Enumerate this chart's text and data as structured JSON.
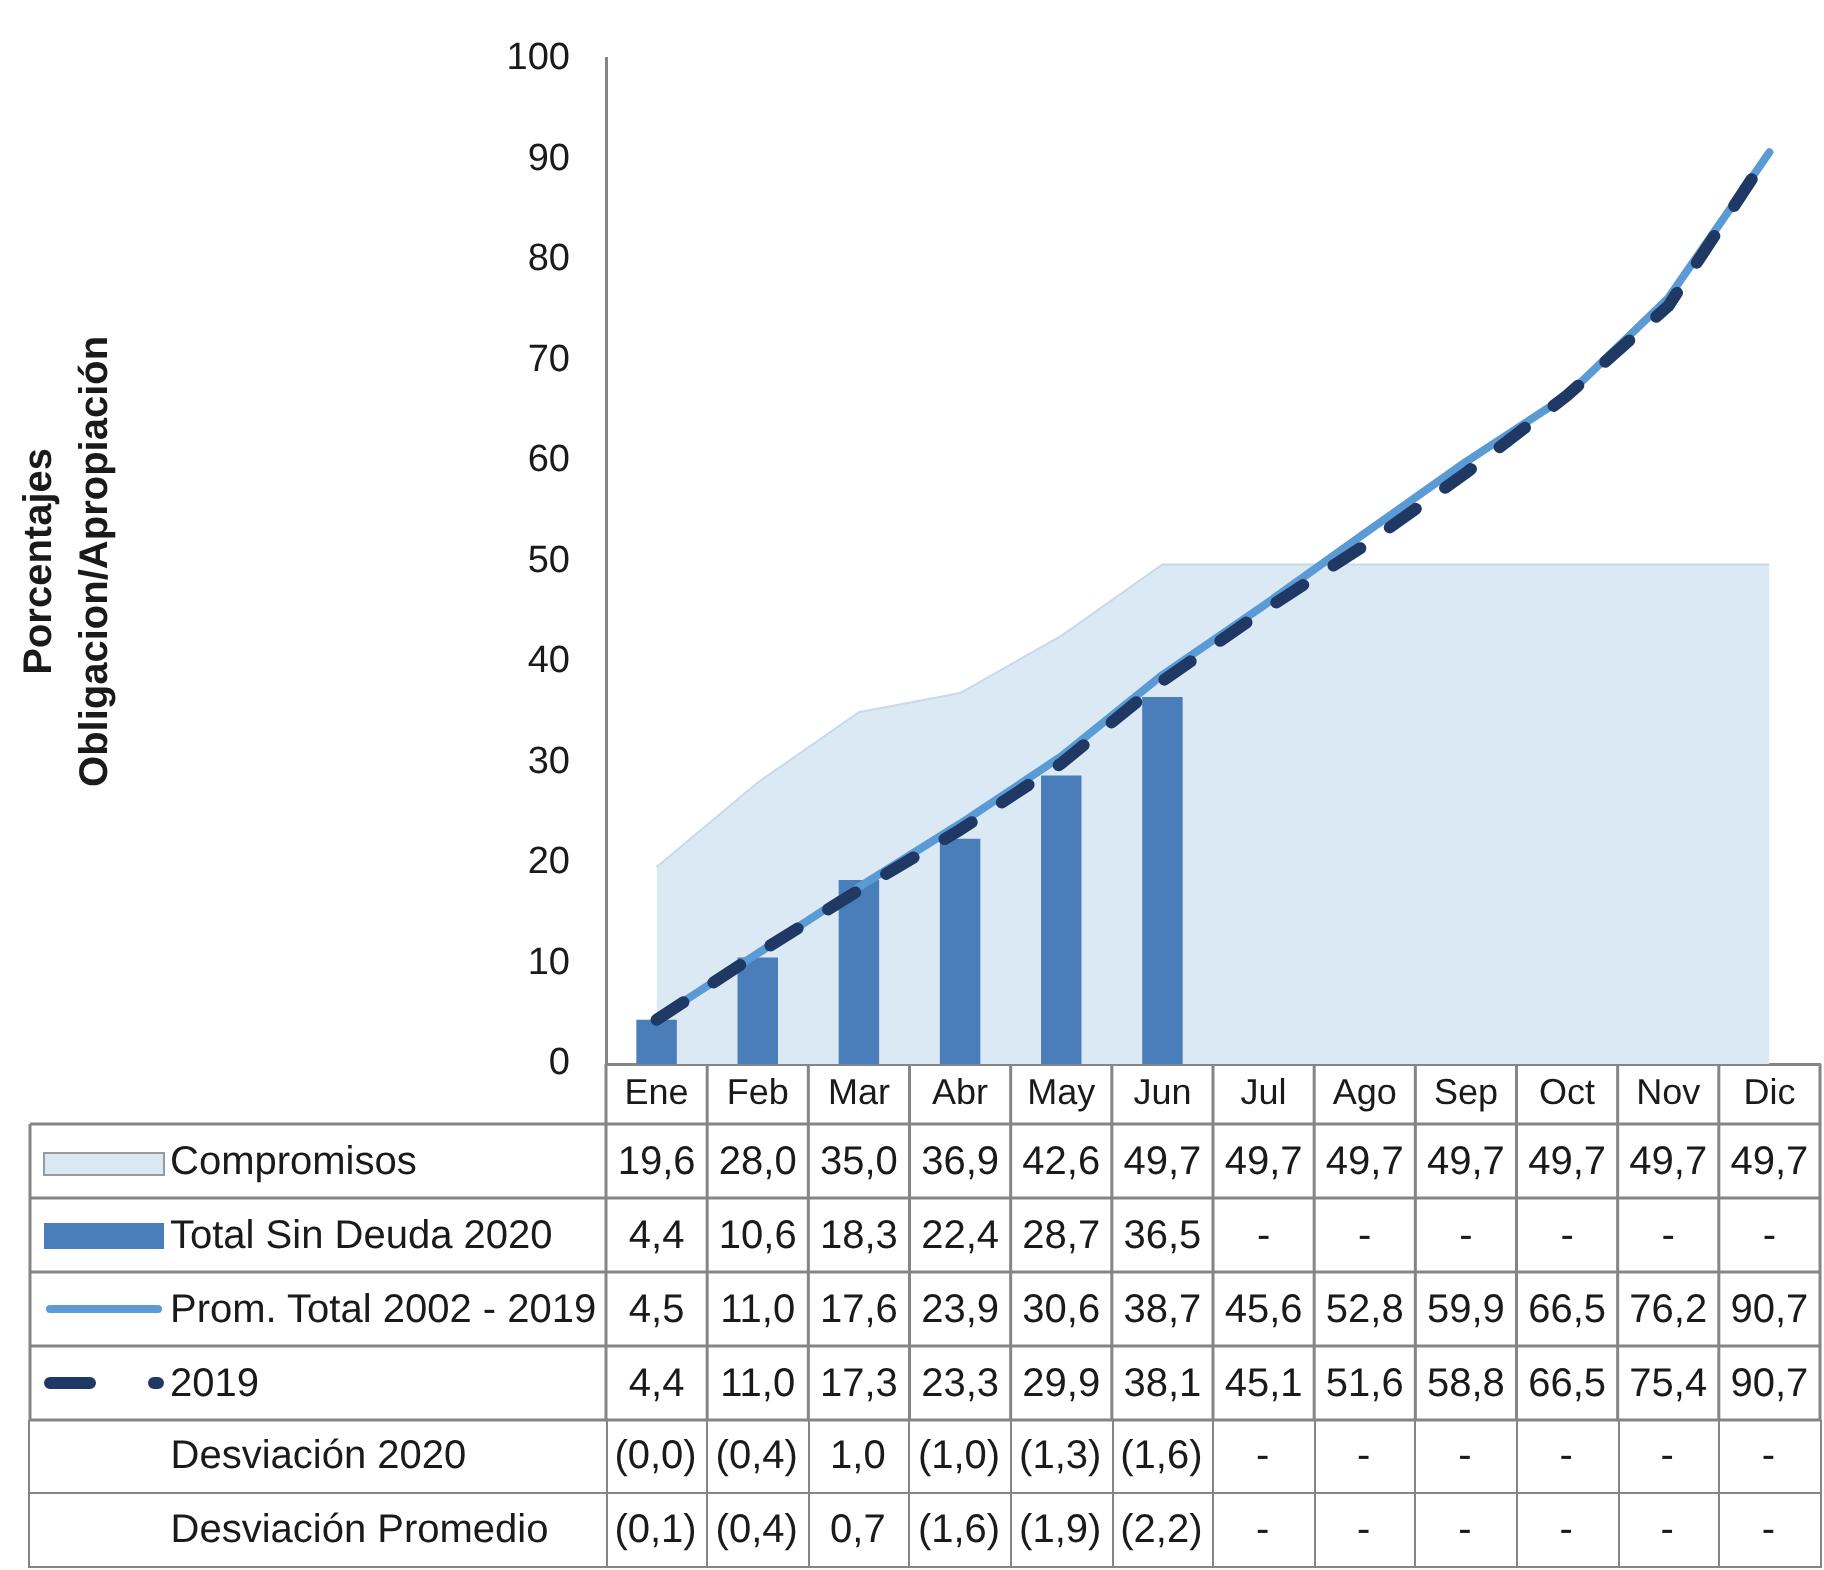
{
  "chart_data": [
    {
      "type": "bar",
      "ylabel": "Porcentajes\nObligacion/Apropiación",
      "categories": [
        "Ene",
        "Feb",
        "Mar",
        "Abr",
        "May",
        "Jun",
        "Jul",
        "Ago",
        "Sep",
        "Oct",
        "Nov",
        "Dic"
      ],
      "series": [
        {
          "name": "Compromisos",
          "type": "area",
          "color": "#dbe9f5",
          "values": [
            19.6,
            28.0,
            35.0,
            36.9,
            42.6,
            49.7,
            49.7,
            49.7,
            49.7,
            49.7,
            49.7,
            49.7
          ],
          "value_labels": [
            "19,6",
            "28,0",
            "35,0",
            "36,9",
            "42,6",
            "49,7",
            "49,7",
            "49,7",
            "49,7",
            "49,7",
            "49,7",
            "49,7"
          ]
        },
        {
          "name": "Total Sin Deuda 2020",
          "type": "bar",
          "color": "#4a7ebb",
          "values": [
            4.4,
            10.6,
            18.3,
            22.4,
            28.7,
            36.5,
            null,
            null,
            null,
            null,
            null,
            null
          ],
          "value_labels": [
            "4,4",
            "10,6",
            "18,3",
            "22,4",
            "28,7",
            "36,5",
            "-",
            "-",
            "-",
            "-",
            "-",
            "-"
          ]
        },
        {
          "name": "Prom. Total 2002 - 2019",
          "type": "line",
          "color": "#5b9bd5",
          "values": [
            4.5,
            11.0,
            17.6,
            23.9,
            30.6,
            38.7,
            45.6,
            52.8,
            59.9,
            66.5,
            76.2,
            90.7
          ],
          "value_labels": [
            "4,5",
            "11,0",
            "17,6",
            "23,9",
            "30,6",
            "38,7",
            "45,6",
            "52,8",
            "59,9",
            "66,5",
            "76,2",
            "90,7"
          ]
        },
        {
          "name": "2019",
          "type": "line",
          "line_style": "dashed",
          "color": "#1f3864",
          "values": [
            4.4,
            11.0,
            17.3,
            23.3,
            29.9,
            38.1,
            45.1,
            51.6,
            58.8,
            66.5,
            75.4,
            90.7
          ],
          "value_labels": [
            "4,4",
            "11,0",
            "17,3",
            "23,3",
            "29,9",
            "38,1",
            "45,1",
            "51,6",
            "58,8",
            "66,5",
            "75,4",
            "90,7"
          ]
        }
      ],
      "ylim": [
        0,
        100
      ],
      "yticks": [
        0,
        10,
        20,
        30,
        40,
        50,
        60,
        70,
        80,
        90,
        100
      ],
      "legend": "bottom"
    },
    {
      "type": "other",
      "annotations": [
        "Desviación 2020",
        "(0,0)",
        "(0,4)",
        "1,0",
        "(1,0)",
        "(1,3)",
        "(1,6)",
        "-",
        "-",
        "-",
        "-",
        "-",
        "-",
        "Desviación Promedio",
        "(0,1)",
        "(0,4)",
        "0,7",
        "(1,6)",
        "(1,9)",
        "(2,2)",
        "-",
        "-",
        "-",
        "-",
        "-",
        "-"
      ]
    }
  ]
}
